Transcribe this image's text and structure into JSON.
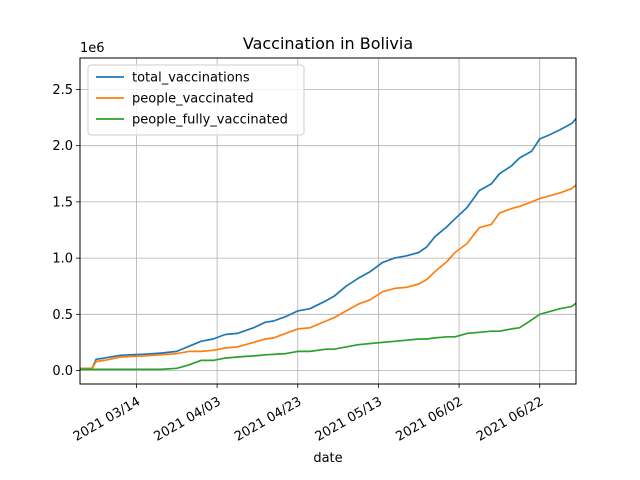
{
  "chart_data": {
    "type": "line",
    "title": "Vaccination in Bolivia",
    "xlabel": "date",
    "ylabel": "",
    "y_offset_label": "1e6",
    "x_ticks": [
      "2021 03/14",
      "2021 04/03",
      "2021 04/23",
      "2021 05/13",
      "2021 06/02",
      "2021 06/22"
    ],
    "y_ticks": [
      "0.0",
      "0.5",
      "1.0",
      "1.5",
      "2.0",
      "2.5"
    ],
    "xlim": [
      "2021-02-28",
      "2021-07-01"
    ],
    "ylim": [
      -0.12,
      2.78
    ],
    "grid": true,
    "legend_position": "top-left",
    "series": [
      {
        "name": "total_vaccinations",
        "color": "#1f77b4",
        "points": [
          [
            "2021-02-28",
            0.02
          ],
          [
            "2021-03-03",
            0.02
          ],
          [
            "2021-03-04",
            0.1
          ],
          [
            "2021-03-06",
            0.11
          ],
          [
            "2021-03-10",
            0.135
          ],
          [
            "2021-03-16",
            0.145
          ],
          [
            "2021-03-20",
            0.155
          ],
          [
            "2021-03-24",
            0.17
          ],
          [
            "2021-03-27",
            0.215
          ],
          [
            "2021-03-30",
            0.26
          ],
          [
            "2021-04-02",
            0.28
          ],
          [
            "2021-04-05",
            0.32
          ],
          [
            "2021-04-08",
            0.33
          ],
          [
            "2021-04-12",
            0.38
          ],
          [
            "2021-04-15",
            0.43
          ],
          [
            "2021-04-17",
            0.44
          ],
          [
            "2021-04-20",
            0.48
          ],
          [
            "2021-04-23",
            0.53
          ],
          [
            "2021-04-26",
            0.55
          ],
          [
            "2021-04-30",
            0.62
          ],
          [
            "2021-05-02",
            0.66
          ],
          [
            "2021-05-05",
            0.75
          ],
          [
            "2021-05-08",
            0.82
          ],
          [
            "2021-05-11",
            0.88
          ],
          [
            "2021-05-14",
            0.96
          ],
          [
            "2021-05-17",
            1.0
          ],
          [
            "2021-05-20",
            1.02
          ],
          [
            "2021-05-23",
            1.05
          ],
          [
            "2021-05-25",
            1.1
          ],
          [
            "2021-05-27",
            1.19
          ],
          [
            "2021-05-30",
            1.28
          ],
          [
            "2021-06-01",
            1.35
          ],
          [
            "2021-06-04",
            1.45
          ],
          [
            "2021-06-07",
            1.6
          ],
          [
            "2021-06-10",
            1.66
          ],
          [
            "2021-06-12",
            1.75
          ],
          [
            "2021-06-15",
            1.82
          ],
          [
            "2021-06-17",
            1.89
          ],
          [
            "2021-06-20",
            1.95
          ],
          [
            "2021-06-22",
            2.06
          ],
          [
            "2021-06-24",
            2.09
          ],
          [
            "2021-06-27",
            2.14
          ],
          [
            "2021-06-30",
            2.2
          ],
          [
            "2021-07-01",
            2.24
          ]
        ]
      },
      {
        "name": "people_vaccinated",
        "color": "#ff7f0e",
        "points": [
          [
            "2021-02-28",
            0.02
          ],
          [
            "2021-03-03",
            0.02
          ],
          [
            "2021-03-04",
            0.08
          ],
          [
            "2021-03-06",
            0.09
          ],
          [
            "2021-03-10",
            0.12
          ],
          [
            "2021-03-16",
            0.13
          ],
          [
            "2021-03-20",
            0.14
          ],
          [
            "2021-03-24",
            0.15
          ],
          [
            "2021-03-27",
            0.17
          ],
          [
            "2021-03-30",
            0.17
          ],
          [
            "2021-04-02",
            0.18
          ],
          [
            "2021-04-05",
            0.2
          ],
          [
            "2021-04-08",
            0.21
          ],
          [
            "2021-04-12",
            0.25
          ],
          [
            "2021-04-15",
            0.28
          ],
          [
            "2021-04-17",
            0.29
          ],
          [
            "2021-04-20",
            0.33
          ],
          [
            "2021-04-23",
            0.37
          ],
          [
            "2021-04-26",
            0.38
          ],
          [
            "2021-04-30",
            0.44
          ],
          [
            "2021-05-02",
            0.47
          ],
          [
            "2021-05-05",
            0.53
          ],
          [
            "2021-05-08",
            0.59
          ],
          [
            "2021-05-11",
            0.63
          ],
          [
            "2021-05-14",
            0.7
          ],
          [
            "2021-05-17",
            0.73
          ],
          [
            "2021-05-20",
            0.74
          ],
          [
            "2021-05-23",
            0.77
          ],
          [
            "2021-05-25",
            0.81
          ],
          [
            "2021-05-27",
            0.88
          ],
          [
            "2021-05-30",
            0.97
          ],
          [
            "2021-06-01",
            1.05
          ],
          [
            "2021-06-04",
            1.13
          ],
          [
            "2021-06-07",
            1.27
          ],
          [
            "2021-06-10",
            1.3
          ],
          [
            "2021-06-12",
            1.4
          ],
          [
            "2021-06-15",
            1.44
          ],
          [
            "2021-06-17",
            1.46
          ],
          [
            "2021-06-20",
            1.5
          ],
          [
            "2021-06-22",
            1.53
          ],
          [
            "2021-06-24",
            1.55
          ],
          [
            "2021-06-27",
            1.58
          ],
          [
            "2021-06-30",
            1.62
          ],
          [
            "2021-07-01",
            1.65
          ]
        ]
      },
      {
        "name": "people_fully_vaccinated",
        "color": "#2ca02c",
        "points": [
          [
            "2021-02-28",
            0.01
          ],
          [
            "2021-03-20",
            0.01
          ],
          [
            "2021-03-24",
            0.02
          ],
          [
            "2021-03-27",
            0.05
          ],
          [
            "2021-03-30",
            0.09
          ],
          [
            "2021-04-02",
            0.09
          ],
          [
            "2021-04-05",
            0.11
          ],
          [
            "2021-04-08",
            0.12
          ],
          [
            "2021-04-12",
            0.13
          ],
          [
            "2021-04-15",
            0.14
          ],
          [
            "2021-04-20",
            0.15
          ],
          [
            "2021-04-23",
            0.17
          ],
          [
            "2021-04-26",
            0.17
          ],
          [
            "2021-04-30",
            0.19
          ],
          [
            "2021-05-02",
            0.19
          ],
          [
            "2021-05-05",
            0.21
          ],
          [
            "2021-05-08",
            0.23
          ],
          [
            "2021-05-11",
            0.24
          ],
          [
            "2021-05-14",
            0.25
          ],
          [
            "2021-05-17",
            0.26
          ],
          [
            "2021-05-20",
            0.27
          ],
          [
            "2021-05-23",
            0.28
          ],
          [
            "2021-05-25",
            0.28
          ],
          [
            "2021-05-27",
            0.29
          ],
          [
            "2021-05-30",
            0.3
          ],
          [
            "2021-06-01",
            0.3
          ],
          [
            "2021-06-04",
            0.33
          ],
          [
            "2021-06-07",
            0.34
          ],
          [
            "2021-06-10",
            0.35
          ],
          [
            "2021-06-12",
            0.35
          ],
          [
            "2021-06-15",
            0.37
          ],
          [
            "2021-06-17",
            0.38
          ],
          [
            "2021-06-20",
            0.45
          ],
          [
            "2021-06-22",
            0.5
          ],
          [
            "2021-06-24",
            0.52
          ],
          [
            "2021-06-27",
            0.55
          ],
          [
            "2021-06-30",
            0.57
          ],
          [
            "2021-07-01",
            0.6
          ]
        ]
      }
    ]
  }
}
